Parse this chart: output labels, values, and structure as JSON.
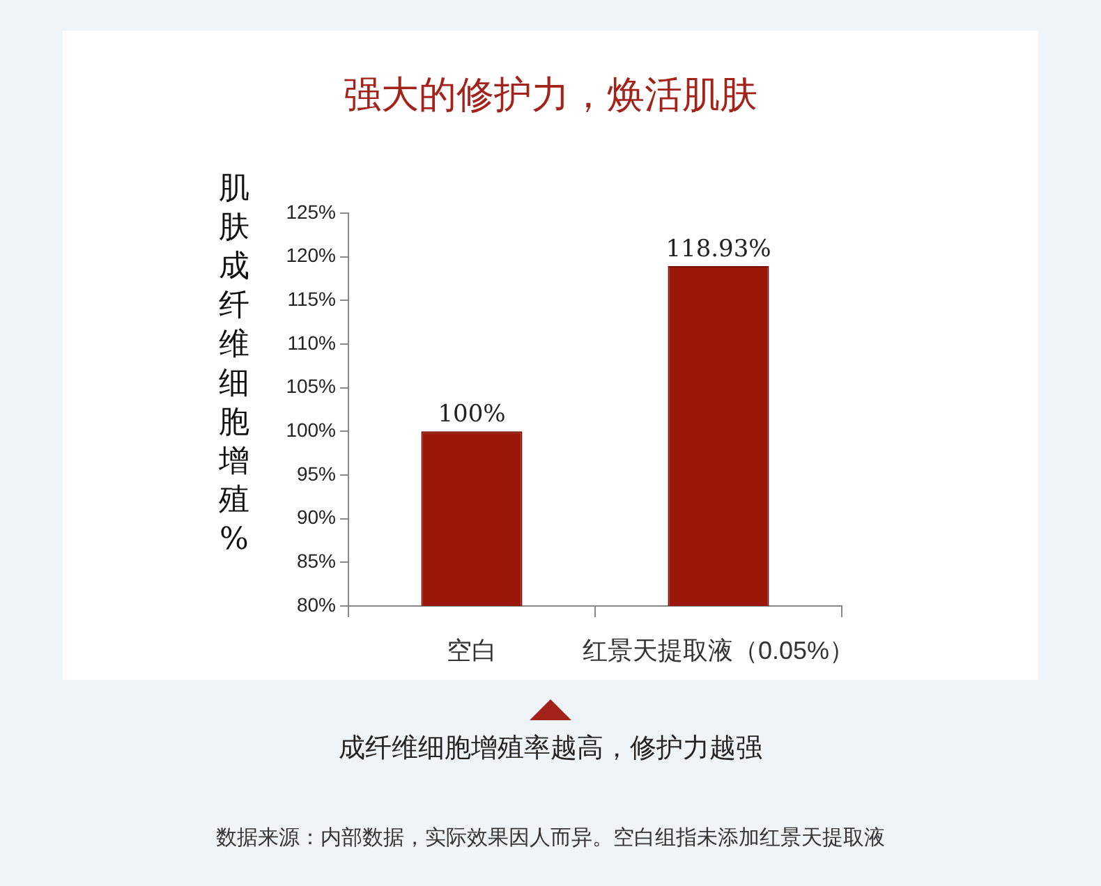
{
  "chart_data": {
    "type": "bar",
    "title": "强大的修护力，焕活肌肤",
    "ylabel": "肌肤成纤维细胞增殖%",
    "categories": [
      "空白",
      "红景天提取液（0.05%）"
    ],
    "values": [
      100,
      118.93
    ],
    "value_labels": [
      "100%",
      "118.93%"
    ],
    "color": "#9b1708",
    "ylim": [
      80,
      125
    ],
    "yticks": [
      {
        "value": 80,
        "label": "80%"
      },
      {
        "value": 85,
        "label": "85%"
      },
      {
        "value": 90,
        "label": "90%"
      },
      {
        "value": 95,
        "label": "95%"
      },
      {
        "value": 100,
        "label": "100%"
      },
      {
        "value": 105,
        "label": "105%"
      },
      {
        "value": 110,
        "label": "110%"
      },
      {
        "value": 115,
        "label": "115%"
      },
      {
        "value": 120,
        "label": "120%"
      },
      {
        "value": 125,
        "label": "125%"
      }
    ],
    "grid": false,
    "legend": false,
    "annotations": [
      "成纤维细胞增殖率越高，修护力越强",
      "数据来源：内部数据，实际效果因人而异。空白组指未添加红景天提取液"
    ]
  }
}
